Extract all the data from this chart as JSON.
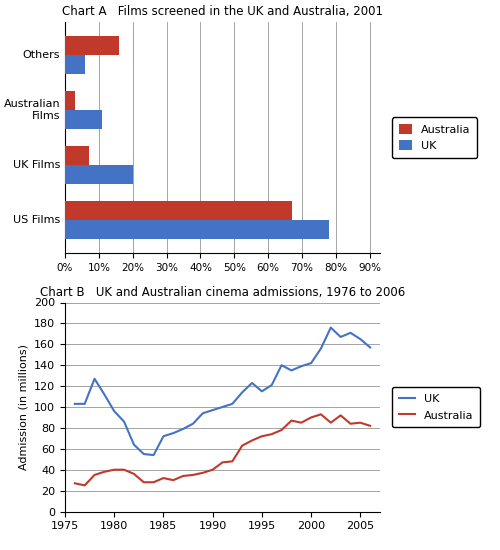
{
  "chart_a": {
    "title": "Chart A   Films screened in the UK and Australia, 2001",
    "categories": [
      "US Films",
      "UK Films",
      "Australian\nFilms",
      "Others"
    ],
    "australia_values": [
      0.67,
      0.07,
      0.03,
      0.16
    ],
    "uk_values": [
      0.78,
      0.2,
      0.11,
      0.06
    ],
    "australia_color": "#C0392B",
    "uk_color": "#4472C4",
    "xticks": [
      0,
      0.1,
      0.2,
      0.3,
      0.4,
      0.5,
      0.6,
      0.7,
      0.8,
      0.9
    ],
    "xtick_labels": [
      "0%",
      "10%",
      "20%",
      "30%",
      "40%",
      "50%",
      "60%",
      "70%",
      "80%",
      "90%"
    ],
    "xlim": [
      0,
      0.93
    ]
  },
  "chart_b": {
    "title": "Chart B   UK and Australian cinema admissions, 1976 to 2006",
    "uk_years": [
      1976,
      1977,
      1978,
      1979,
      1980,
      1981,
      1982,
      1983,
      1984,
      1985,
      1986,
      1987,
      1988,
      1989,
      1990,
      1991,
      1992,
      1993,
      1994,
      1995,
      1996,
      1997,
      1998,
      1999,
      2000,
      2001,
      2002,
      2003,
      2004,
      2005,
      2006
    ],
    "uk_values": [
      103,
      103,
      127,
      112,
      96,
      86,
      64,
      55,
      54,
      72,
      75,
      79,
      84,
      94,
      97,
      100,
      103,
      114,
      123,
      115,
      121,
      140,
      135,
      139,
      142,
      156,
      176,
      167,
      171,
      165,
      157
    ],
    "aus_years": [
      1976,
      1977,
      1978,
      1979,
      1980,
      1981,
      1982,
      1983,
      1984,
      1985,
      1986,
      1987,
      1988,
      1989,
      1990,
      1991,
      1992,
      1993,
      1994,
      1995,
      1996,
      1997,
      1998,
      1999,
      2000,
      2001,
      2002,
      2003,
      2004,
      2005,
      2006
    ],
    "aus_values": [
      27,
      25,
      35,
      38,
      40,
      40,
      36,
      28,
      28,
      32,
      30,
      34,
      35,
      37,
      40,
      47,
      48,
      63,
      68,
      72,
      74,
      78,
      87,
      85,
      90,
      93,
      85,
      92,
      84,
      85,
      82
    ],
    "uk_color": "#4472C4",
    "aus_color": "#C0392B",
    "ylabel": "Admission (in millions)",
    "ylim": [
      0,
      200
    ],
    "yticks": [
      0,
      20,
      40,
      60,
      80,
      100,
      120,
      140,
      160,
      180,
      200
    ],
    "xlim": [
      1975,
      2007
    ],
    "xticks": [
      1975,
      1980,
      1985,
      1990,
      1995,
      2000,
      2005
    ]
  }
}
